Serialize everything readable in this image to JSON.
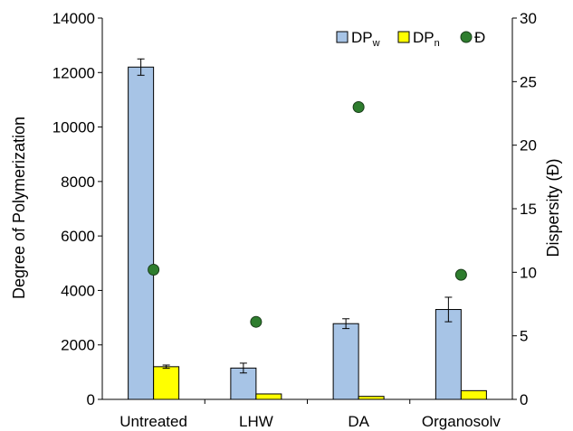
{
  "chart_data": {
    "type": "bar",
    "categories": [
      "Untreated",
      "LHW",
      "DA",
      "Organosolv"
    ],
    "series": [
      {
        "name": "DPw",
        "name_main": "DP",
        "name_sub": "w",
        "axis": "left",
        "kind": "bar",
        "color": "#a7c4e6",
        "values": [
          12200,
          1150,
          2780,
          3300
        ],
        "errors": [
          300,
          180,
          180,
          450
        ]
      },
      {
        "name": "DPn",
        "name_main": "DP",
        "name_sub": "n",
        "axis": "left",
        "kind": "bar",
        "color": "#ffff00",
        "values": [
          1200,
          200,
          110,
          320
        ],
        "errors": [
          60,
          0,
          0,
          0
        ]
      },
      {
        "name": "Đ",
        "axis": "right",
        "kind": "scatter",
        "color": "#2e7d2e",
        "values": [
          10.2,
          6.1,
          23.0,
          9.8
        ]
      }
    ],
    "ylabel": "Degree of Polymerization",
    "y2label": "Dispersity (Đ)",
    "ylim": [
      0,
      14000
    ],
    "y2lim": [
      0,
      30
    ],
    "yticks": [
      0,
      2000,
      4000,
      6000,
      8000,
      10000,
      12000,
      14000
    ],
    "y2ticks": [
      0,
      5,
      10,
      15,
      20,
      25,
      30
    ],
    "grid": false,
    "legend_position": "top-right"
  }
}
